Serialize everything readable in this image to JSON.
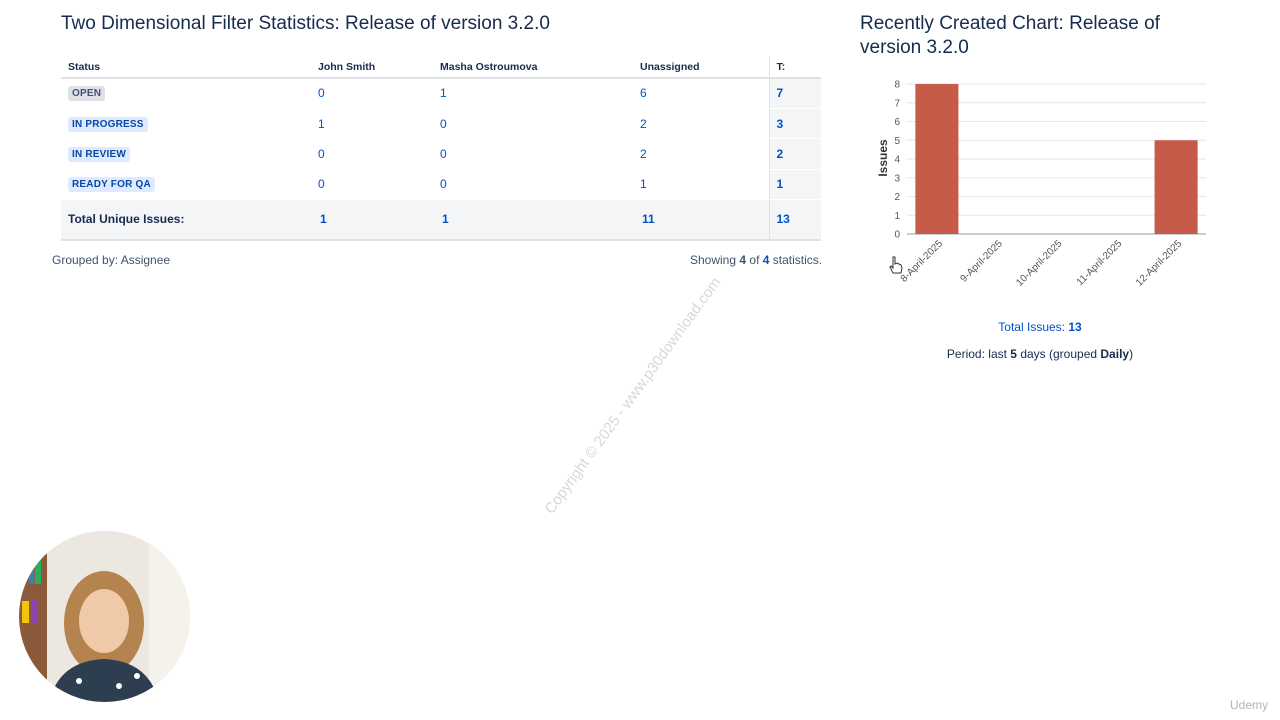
{
  "stats": {
    "title": "Two Dimensional Filter Statistics: Release of version 3.2.0",
    "columns": [
      "Status",
      "John Smith",
      "Masha Ostroumova",
      "Unassigned",
      "T:"
    ],
    "rows": [
      {
        "status": "OPEN",
        "style": "grey",
        "values": [
          "0",
          "1",
          "6"
        ],
        "total": "7"
      },
      {
        "status": "IN PROGRESS",
        "style": "blue",
        "values": [
          "1",
          "0",
          "2"
        ],
        "total": "3"
      },
      {
        "status": "IN REVIEW",
        "style": "blue",
        "values": [
          "0",
          "0",
          "2"
        ],
        "total": "2"
      },
      {
        "status": "READY FOR QA",
        "style": "blue",
        "values": [
          "0",
          "0",
          "1"
        ],
        "total": "1"
      }
    ],
    "total_row": {
      "label": "Total Unique Issues:",
      "values": [
        "1",
        "1",
        "11"
      ],
      "total": "13"
    },
    "grouped_by": "Grouped by: Assignee",
    "showing": {
      "prefix": "Showing",
      "shown": "4",
      "of": "of",
      "total": "4",
      "suffix": "statistics."
    }
  },
  "chart": {
    "title": "Recently Created Chart: Release of version 3.2.0",
    "total_label": "Total Issues:",
    "total_value": "13",
    "period_prefix": "Period: last",
    "period_days": "5",
    "period_middle": "days (grouped",
    "period_grouping": "Daily",
    "period_suffix": ")"
  },
  "chart_data": {
    "type": "bar",
    "categories": [
      "8-April-2025",
      "9-April-2025",
      "10-April-2025",
      "11-April-2025",
      "12-April-2025"
    ],
    "values": [
      8,
      0,
      0,
      0,
      5
    ],
    "title": "",
    "xlabel": "",
    "ylabel": "Issues",
    "ylim": [
      0,
      8
    ],
    "yticks": [
      0,
      1,
      2,
      3,
      4,
      5,
      6,
      7,
      8
    ],
    "grid": true,
    "bar_color": "#c75b4a"
  },
  "overlay": {
    "watermark": "Copyright © 2025 - www.p30download.com",
    "branding": "Udemy"
  }
}
